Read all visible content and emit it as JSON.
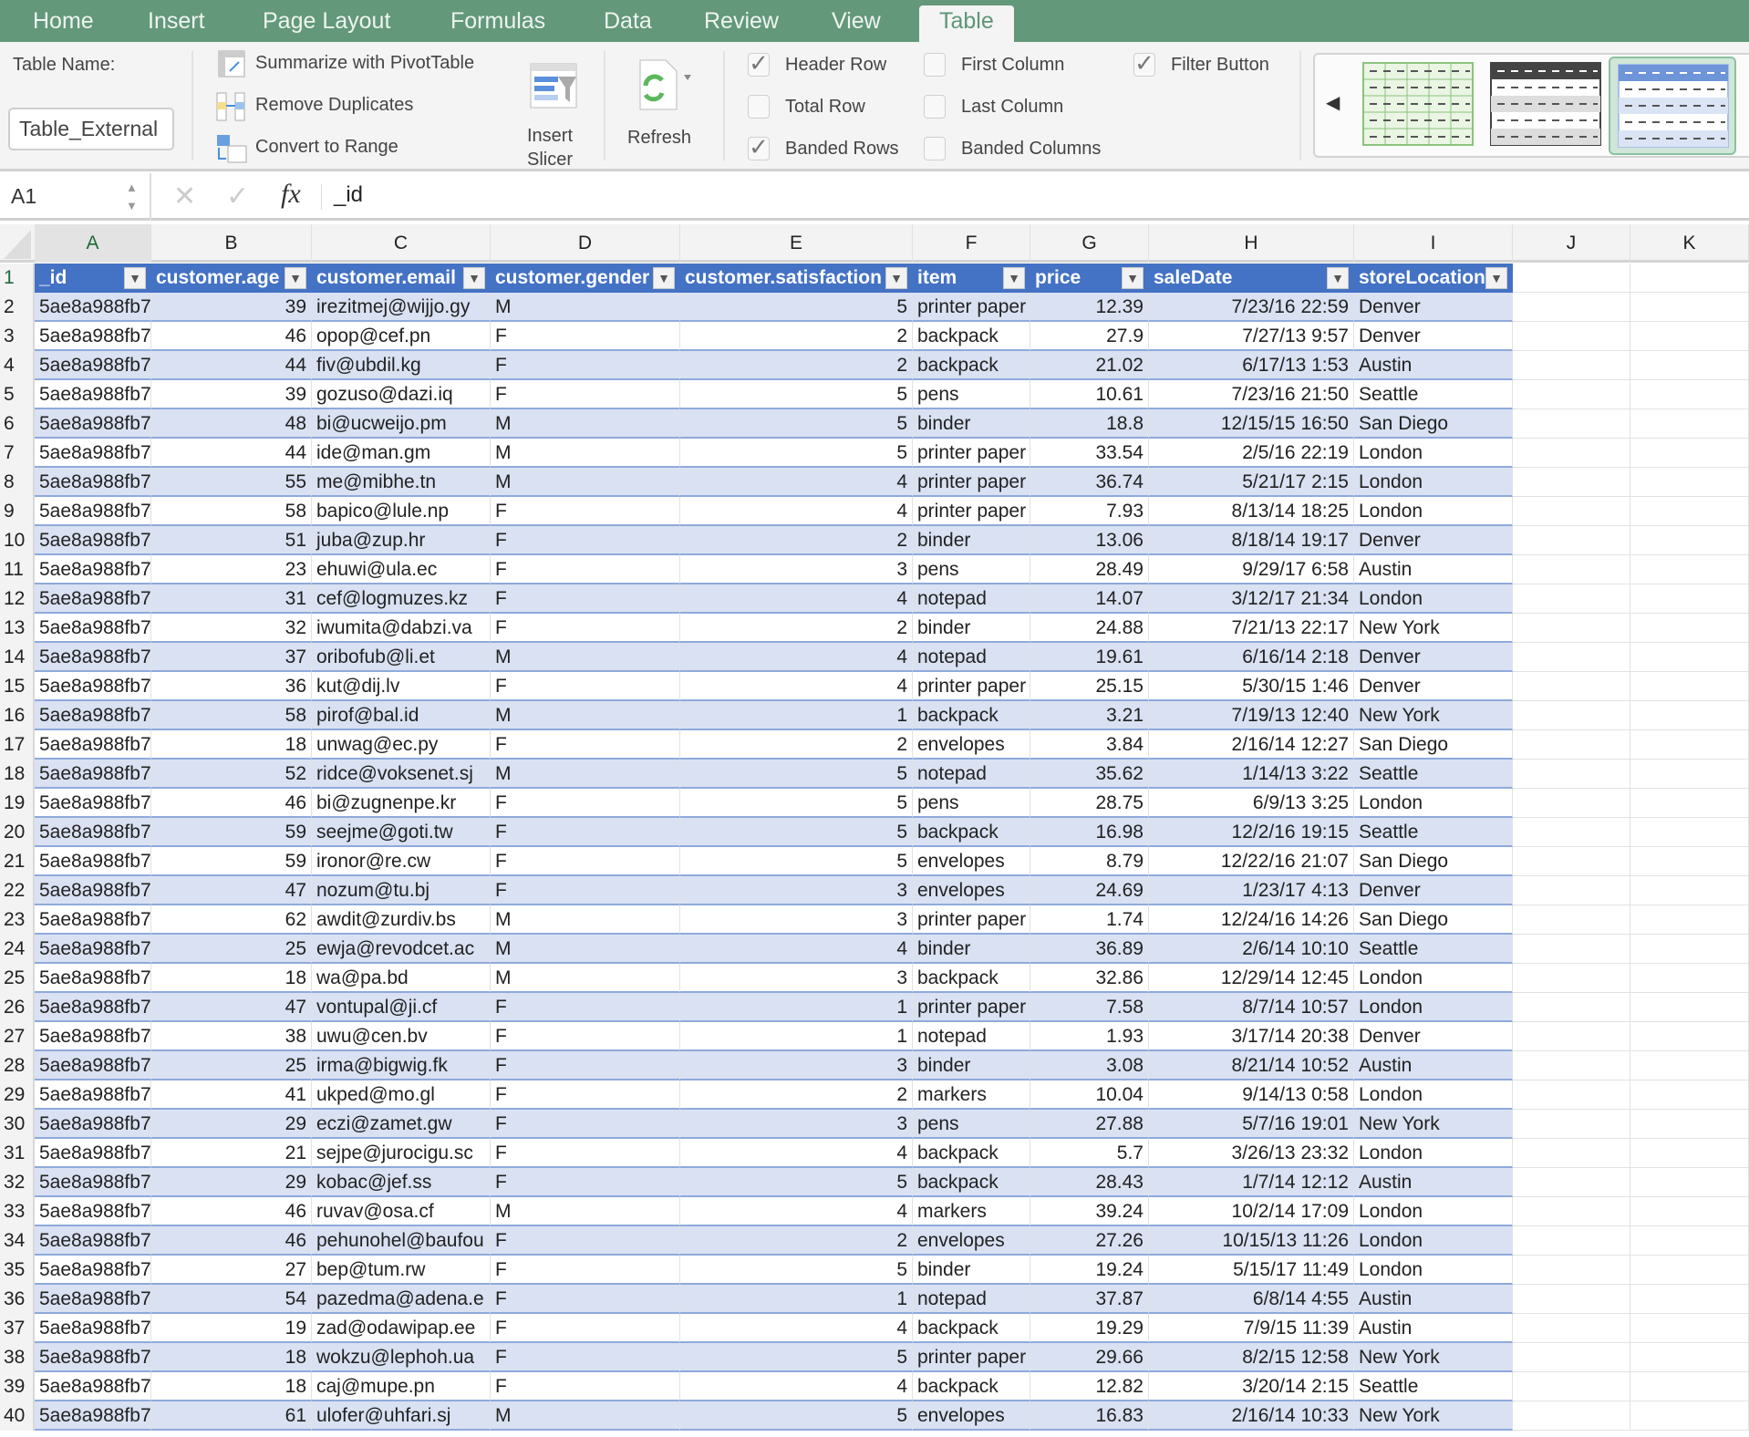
{
  "tabs": [
    "Home",
    "Insert",
    "Page Layout",
    "Formulas",
    "Data",
    "Review",
    "View",
    "Table"
  ],
  "active_tab": "Table",
  "ribbon": {
    "table_name_label": "Table Name:",
    "table_name_value": "Table_External",
    "summarize": "Summarize with PivotTable",
    "remove_duplicates": "Remove Duplicates",
    "convert": "Convert to Range",
    "insert_slicer_1": "Insert",
    "insert_slicer_2": "Slicer",
    "refresh": "Refresh",
    "checkboxes": [
      {
        "label": "Header Row",
        "checked": true
      },
      {
        "label": "Total Row",
        "checked": false
      },
      {
        "label": "Banded Rows",
        "checked": true
      },
      {
        "label": "First Column",
        "checked": false
      },
      {
        "label": "Last Column",
        "checked": false
      },
      {
        "label": "Banded Columns",
        "checked": false
      },
      {
        "label": "Filter Button",
        "checked": true
      }
    ]
  },
  "formula_bar": {
    "cell_ref": "A1",
    "fx": "fx",
    "value": "_id"
  },
  "columns": [
    "A",
    "B",
    "C",
    "D",
    "E",
    "F",
    "G",
    "H",
    "I",
    "J",
    "K"
  ],
  "headers": [
    "_id",
    "customer.age",
    "customer.email",
    "customer.gender",
    "customer.satisfaction",
    "item",
    "price",
    "saleDate",
    "storeLocation"
  ],
  "colors": {
    "header": "#4472c4",
    "band": "#d9e1f2",
    "tabbar": "#63987a"
  },
  "rows": [
    [
      "5ae8a988fb7",
      "39",
      "irezitmej@wijjo.gy",
      "M",
      "5",
      "printer paper",
      "12.39",
      "7/23/16 22:59",
      "Denver"
    ],
    [
      "5ae8a988fb7",
      "46",
      "opop@cef.pn",
      "F",
      "2",
      "backpack",
      "27.9",
      "7/27/13 9:57",
      "Denver"
    ],
    [
      "5ae8a988fb7",
      "44",
      "fiv@ubdil.kg",
      "F",
      "2",
      "backpack",
      "21.02",
      "6/17/13 1:53",
      "Austin"
    ],
    [
      "5ae8a988fb7",
      "39",
      "gozuso@dazi.iq",
      "F",
      "5",
      "pens",
      "10.61",
      "7/23/16 21:50",
      "Seattle"
    ],
    [
      "5ae8a988fb7",
      "48",
      "bi@ucweijo.pm",
      "M",
      "5",
      "binder",
      "18.8",
      "12/15/15 16:50",
      "San Diego"
    ],
    [
      "5ae8a988fb7",
      "44",
      "ide@man.gm",
      "M",
      "5",
      "printer paper",
      "33.54",
      "2/5/16 22:19",
      "London"
    ],
    [
      "5ae8a988fb7",
      "55",
      "me@mibhe.tn",
      "M",
      "4",
      "printer paper",
      "36.74",
      "5/21/17 2:15",
      "London"
    ],
    [
      "5ae8a988fb7",
      "58",
      "bapico@lule.np",
      "F",
      "4",
      "printer paper",
      "7.93",
      "8/13/14 18:25",
      "London"
    ],
    [
      "5ae8a988fb7",
      "51",
      "juba@zup.hr",
      "F",
      "2",
      "binder",
      "13.06",
      "8/18/14 19:17",
      "Denver"
    ],
    [
      "5ae8a988fb7",
      "23",
      "ehuwi@ula.ec",
      "F",
      "3",
      "pens",
      "28.49",
      "9/29/17 6:58",
      "Austin"
    ],
    [
      "5ae8a988fb7",
      "31",
      "cef@logmuzes.kz",
      "F",
      "4",
      "notepad",
      "14.07",
      "3/12/17 21:34",
      "London"
    ],
    [
      "5ae8a988fb7",
      "32",
      "iwumita@dabzi.va",
      "F",
      "2",
      "binder",
      "24.88",
      "7/21/13 22:17",
      "New York"
    ],
    [
      "5ae8a988fb7",
      "37",
      "oribofub@li.et",
      "M",
      "4",
      "notepad",
      "19.61",
      "6/16/14 2:18",
      "Denver"
    ],
    [
      "5ae8a988fb7",
      "36",
      "kut@dij.lv",
      "F",
      "4",
      "printer paper",
      "25.15",
      "5/30/15 1:46",
      "Denver"
    ],
    [
      "5ae8a988fb7",
      "58",
      "pirof@bal.id",
      "M",
      "1",
      "backpack",
      "3.21",
      "7/19/13 12:40",
      "New York"
    ],
    [
      "5ae8a988fb7",
      "18",
      "unwag@ec.py",
      "F",
      "2",
      "envelopes",
      "3.84",
      "2/16/14 12:27",
      "San Diego"
    ],
    [
      "5ae8a988fb7",
      "52",
      "ridce@voksenet.sj",
      "M",
      "5",
      "notepad",
      "35.62",
      "1/14/13 3:22",
      "Seattle"
    ],
    [
      "5ae8a988fb7",
      "46",
      "bi@zugnenpe.kr",
      "F",
      "5",
      "pens",
      "28.75",
      "6/9/13 3:25",
      "London"
    ],
    [
      "5ae8a988fb7",
      "59",
      "seejme@goti.tw",
      "F",
      "5",
      "backpack",
      "16.98",
      "12/2/16 19:15",
      "Seattle"
    ],
    [
      "5ae8a988fb7",
      "59",
      "ironor@re.cw",
      "F",
      "5",
      "envelopes",
      "8.79",
      "12/22/16 21:07",
      "San Diego"
    ],
    [
      "5ae8a988fb7",
      "47",
      "nozum@tu.bj",
      "F",
      "3",
      "envelopes",
      "24.69",
      "1/23/17 4:13",
      "Denver"
    ],
    [
      "5ae8a988fb7",
      "62",
      "awdit@zurdiv.bs",
      "M",
      "3",
      "printer paper",
      "1.74",
      "12/24/16 14:26",
      "San Diego"
    ],
    [
      "5ae8a988fb7",
      "25",
      "ewja@revodcet.ac",
      "M",
      "4",
      "binder",
      "36.89",
      "2/6/14 10:10",
      "Seattle"
    ],
    [
      "5ae8a988fb7",
      "18",
      "wa@pa.bd",
      "M",
      "3",
      "backpack",
      "32.86",
      "12/29/14 12:45",
      "London"
    ],
    [
      "5ae8a988fb7",
      "47",
      "vontupal@ji.cf",
      "F",
      "1",
      "printer paper",
      "7.58",
      "8/7/14 10:57",
      "London"
    ],
    [
      "5ae8a988fb7",
      "38",
      "uwu@cen.bv",
      "F",
      "1",
      "notepad",
      "1.93",
      "3/17/14 20:38",
      "Denver"
    ],
    [
      "5ae8a988fb7",
      "25",
      "irma@bigwig.fk",
      "F",
      "3",
      "binder",
      "3.08",
      "8/21/14 10:52",
      "Austin"
    ],
    [
      "5ae8a988fb7",
      "41",
      "ukped@mo.gl",
      "F",
      "2",
      "markers",
      "10.04",
      "9/14/13 0:58",
      "London"
    ],
    [
      "5ae8a988fb7",
      "29",
      "eczi@zamet.gw",
      "F",
      "3",
      "pens",
      "27.88",
      "5/7/16 19:01",
      "New York"
    ],
    [
      "5ae8a988fb7",
      "21",
      "sejpe@jurocigu.sc",
      "F",
      "4",
      "backpack",
      "5.7",
      "3/26/13 23:32",
      "London"
    ],
    [
      "5ae8a988fb7",
      "29",
      "kobac@jef.ss",
      "F",
      "5",
      "backpack",
      "28.43",
      "1/7/14 12:12",
      "Austin"
    ],
    [
      "5ae8a988fb7",
      "46",
      "ruvav@osa.cf",
      "M",
      "4",
      "markers",
      "39.24",
      "10/2/14 17:09",
      "London"
    ],
    [
      "5ae8a988fb7",
      "46",
      "pehunohel@baufou",
      "F",
      "2",
      "envelopes",
      "27.26",
      "10/15/13 11:26",
      "London"
    ],
    [
      "5ae8a988fb7",
      "27",
      "bep@tum.rw",
      "F",
      "5",
      "binder",
      "19.24",
      "5/15/17 11:49",
      "London"
    ],
    [
      "5ae8a988fb7",
      "54",
      "pazedma@adena.e",
      "F",
      "1",
      "notepad",
      "37.87",
      "6/8/14 4:55",
      "Austin"
    ],
    [
      "5ae8a988fb7",
      "19",
      "zad@odawipap.ee",
      "F",
      "4",
      "backpack",
      "19.29",
      "7/9/15 11:39",
      "Austin"
    ],
    [
      "5ae8a988fb7",
      "18",
      "wokzu@lephoh.ua",
      "F",
      "5",
      "printer paper",
      "29.66",
      "8/2/15 12:58",
      "New York"
    ],
    [
      "5ae8a988fb7",
      "18",
      "caj@mupe.pn",
      "F",
      "4",
      "backpack",
      "12.82",
      "3/20/14 2:15",
      "Seattle"
    ],
    [
      "5ae8a988fb7",
      "61",
      "ulofer@uhfari.sj",
      "M",
      "5",
      "envelopes",
      "16.83",
      "2/16/14 10:33",
      "New York"
    ]
  ]
}
